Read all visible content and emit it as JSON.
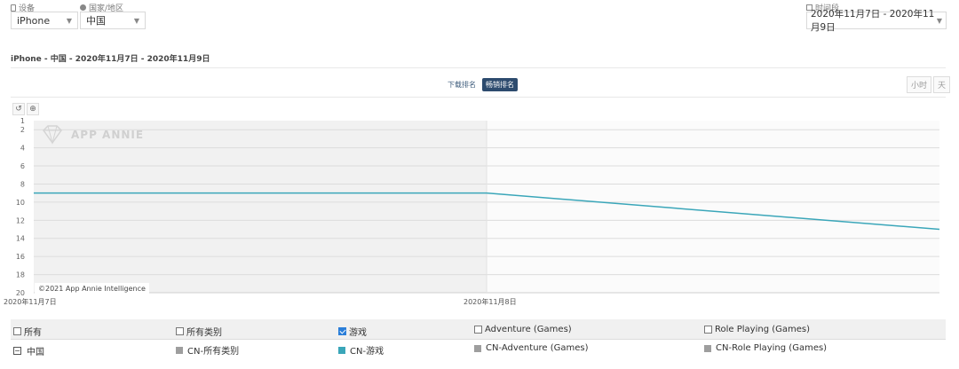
{
  "filters": {
    "device_label": "设备",
    "device_value": "iPhone",
    "country_label": "国家/地区",
    "country_value": "中国",
    "period_label": "时间段",
    "period_value": "2020年11月7日 - 2020年11月9日"
  },
  "subtitle": "iPhone - 中国 - 2020年11月7日 - 2020年11月9日",
  "rank_toggle": {
    "options": [
      "下载排名",
      "畅销排名"
    ],
    "active": "畅销排名"
  },
  "granularity": {
    "hour": "小时",
    "day": "天"
  },
  "toolbar": {
    "reset_icon": "reset-icon",
    "zoom_icon": "zoom-icon"
  },
  "watermark": "APP ANNIE",
  "copyright": "©2021 App Annie Intelligence",
  "chart_data": {
    "type": "line",
    "x": [
      "2020年11月7日",
      "2020年11月8日",
      "2020年11月9日"
    ],
    "x_tick_labels": [
      "2020年11月7日",
      "2020年11月8日"
    ],
    "y_ticks": [
      "1",
      "2",
      "4",
      "6",
      "8",
      "10",
      "12",
      "14",
      "16",
      "18",
      "20"
    ],
    "ylim": [
      1,
      20
    ],
    "y_reversed": true,
    "grid": true,
    "series": [
      {
        "values": [
          9,
          9,
          13
        ],
        "color": "#3aa6b9"
      }
    ]
  },
  "legend": {
    "header": [
      {
        "label": "所有",
        "checked": false
      },
      {
        "label": "所有类别",
        "checked": false
      },
      {
        "label": "游戏",
        "checked": true
      },
      {
        "label": "Adventure (Games)",
        "checked": false
      },
      {
        "label": "Role Playing (Games)",
        "checked": false
      }
    ],
    "country_row_label": "中国",
    "row": [
      {
        "label": "CN-所有类别",
        "color": "#9e9e9e"
      },
      {
        "label": "CN-游戏",
        "color": "#3aa6b9"
      },
      {
        "label": "CN-Adventure (Games)",
        "color": "#9e9e9e"
      },
      {
        "label": "CN-Role Playing (Games)",
        "color": "#9e9e9e"
      }
    ]
  },
  "colors": {
    "accent": "#2d4b6e",
    "line": "#3aa6b9"
  }
}
